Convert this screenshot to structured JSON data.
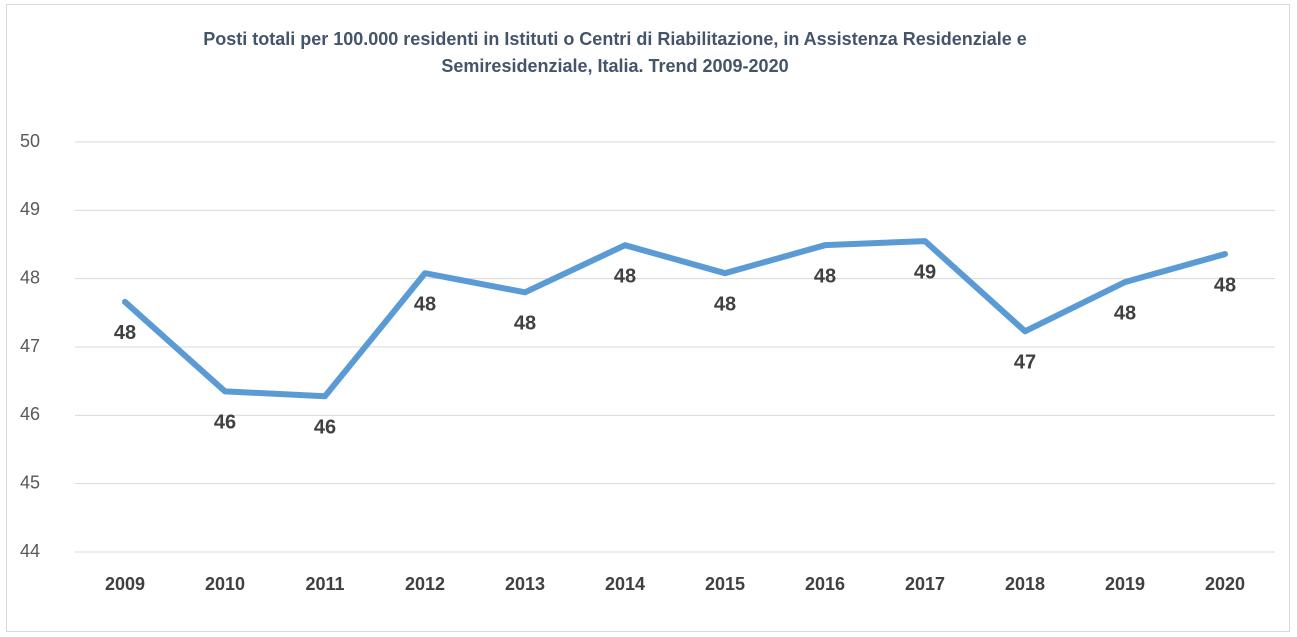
{
  "chart_data": {
    "type": "line",
    "title": "Posti totali per 100.000 residenti in Istituti o Centri di Riabilitazione, in Assistenza Residenziale e Semiresidenziale, Italia. Trend 2009-2020",
    "categories": [
      "2009",
      "2010",
      "2011",
      "2012",
      "2013",
      "2014",
      "2015",
      "2016",
      "2017",
      "2018",
      "2019",
      "2020"
    ],
    "series": [
      {
        "name": "Posti totali",
        "color": "#5b9bd5",
        "values": [
          47.66,
          46.35,
          46.28,
          48.08,
          47.8,
          48.49,
          48.08,
          48.49,
          48.55,
          47.23,
          47.95,
          48.36
        ],
        "value_labels": [
          "48",
          "46",
          "46",
          "48",
          "48",
          "48",
          "48",
          "48",
          "49",
          "47",
          "48",
          "48"
        ]
      }
    ],
    "ylim": [
      44,
      50
    ],
    "yticks": [
      44,
      45,
      46,
      47,
      48,
      49,
      50
    ],
    "grid": true
  }
}
